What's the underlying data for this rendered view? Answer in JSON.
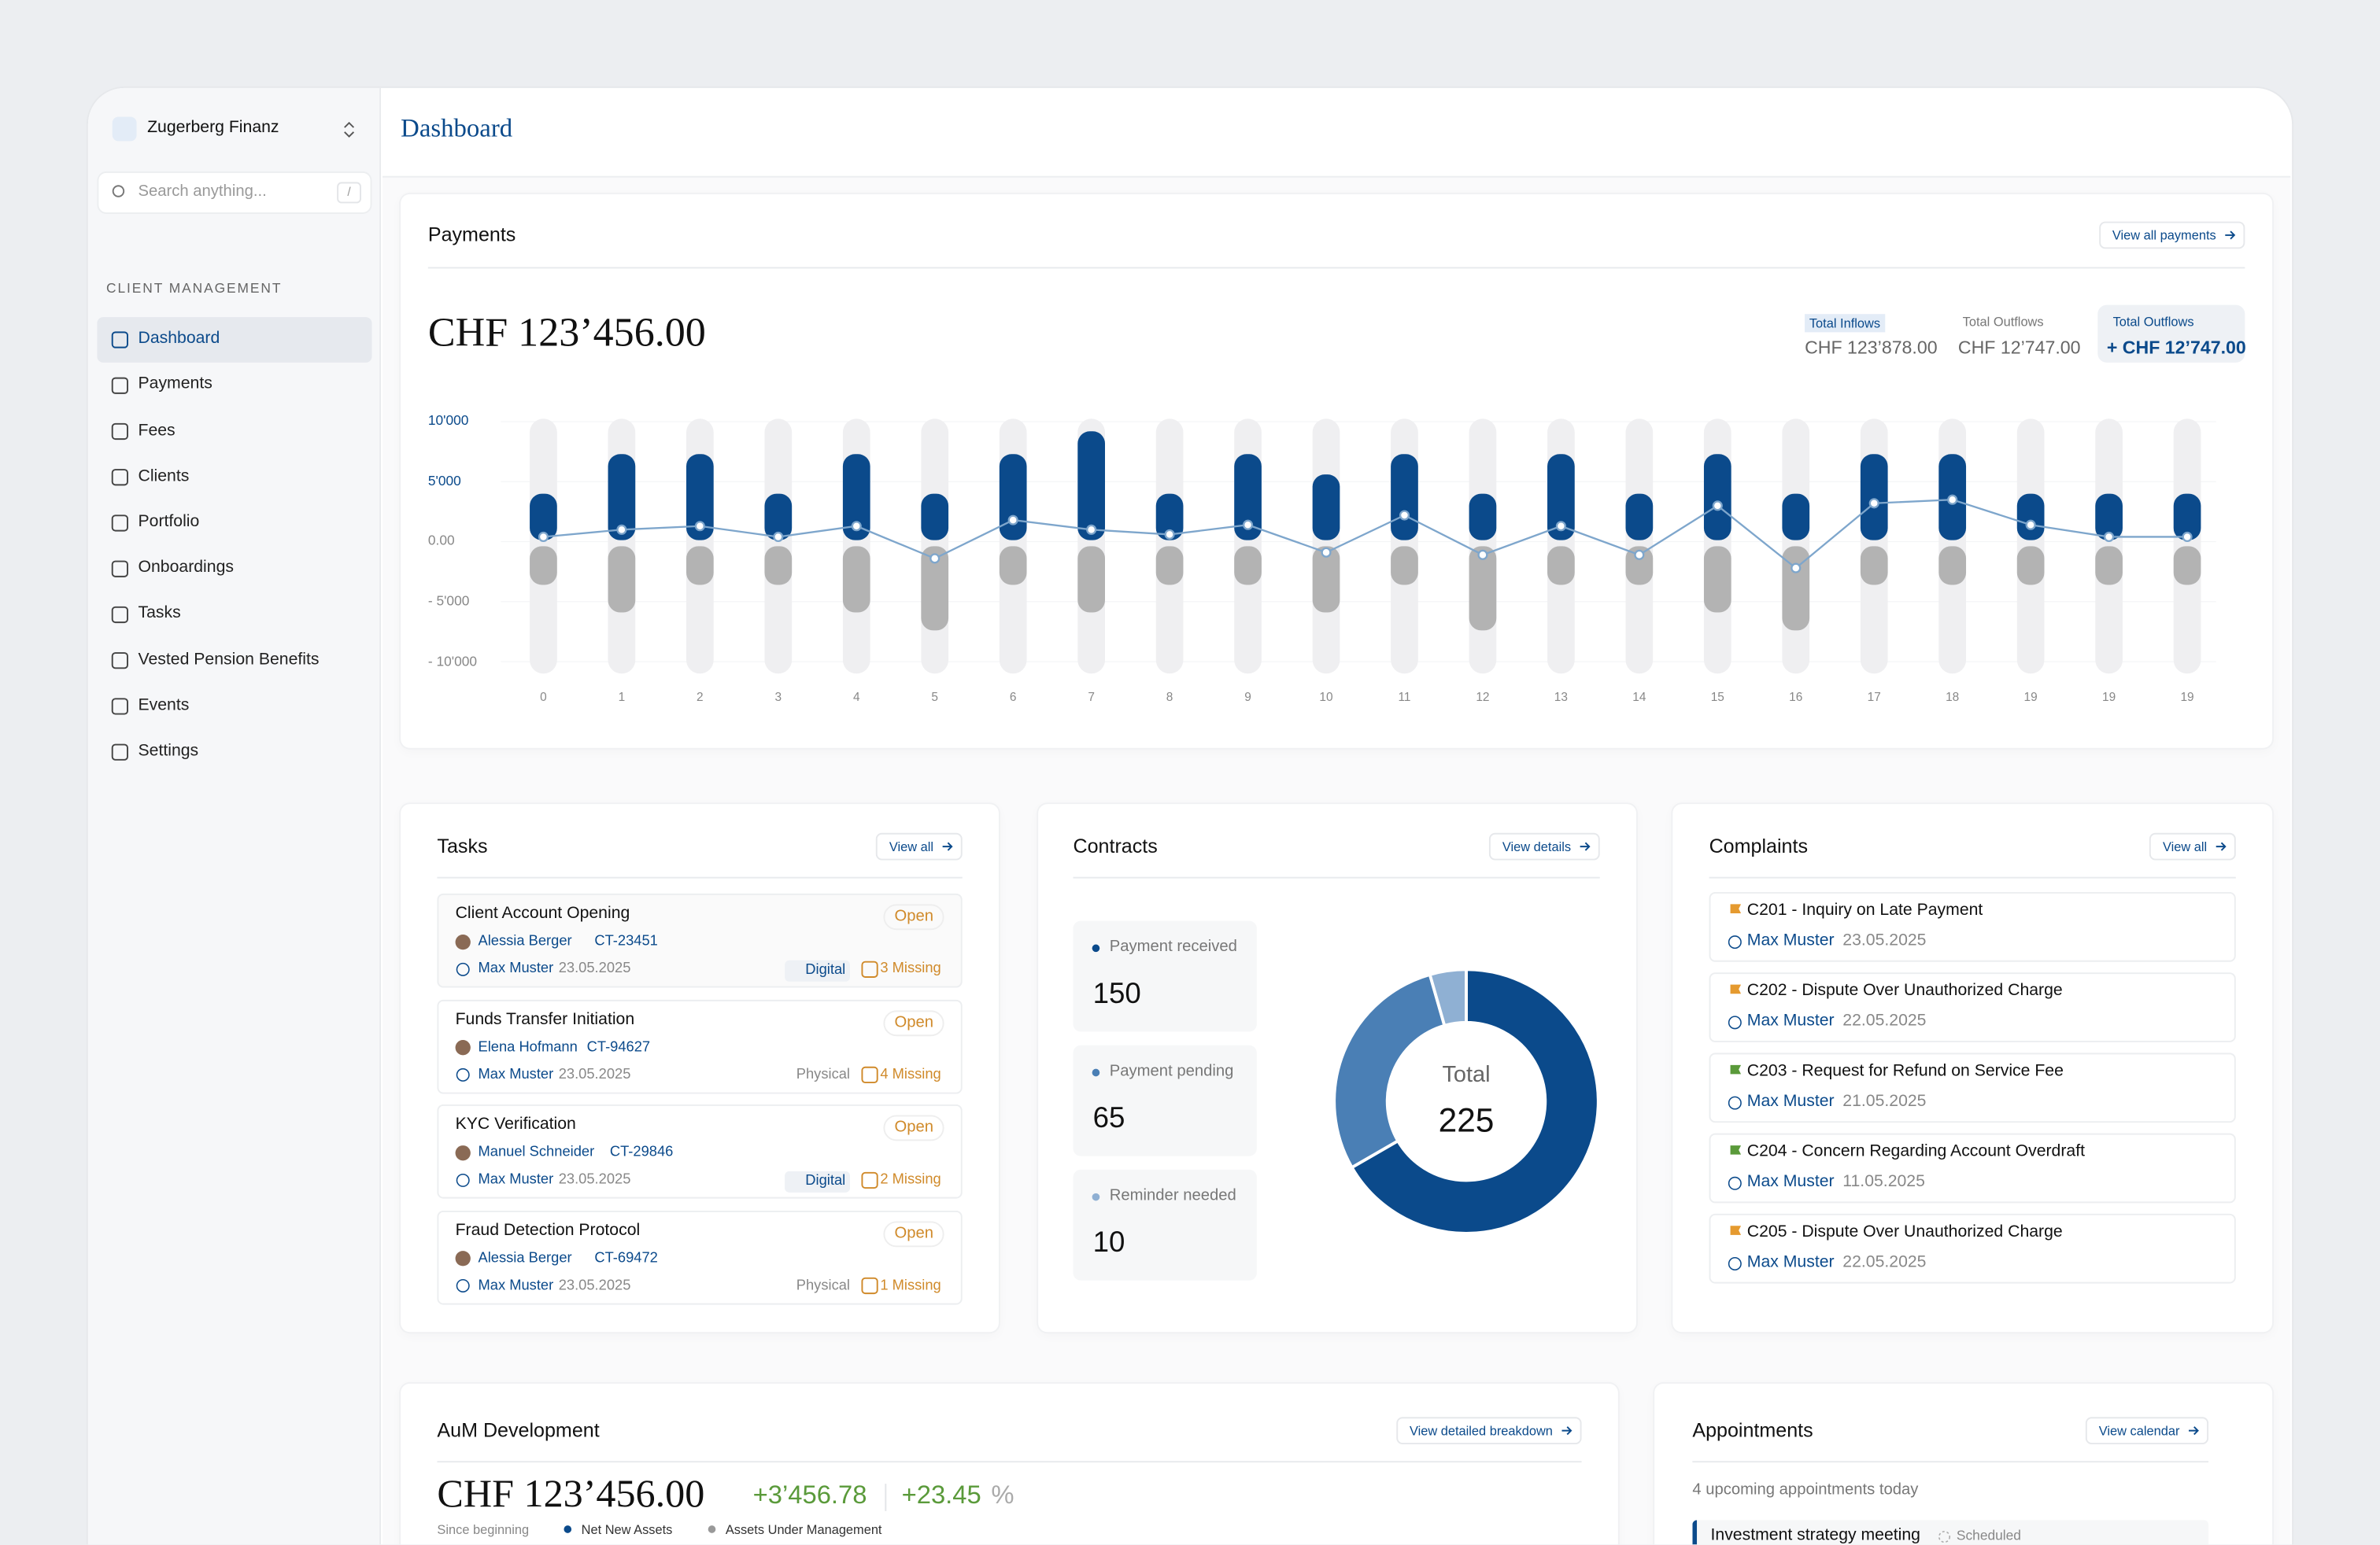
{
  "sidebar": {
    "org": "Zugerberg Finanz",
    "search": "Search anything...",
    "shortcut": "/",
    "section": "CLIENT MANAGEMENT",
    "nav": [
      "Dashboard",
      "Payments",
      "Fees",
      "Clients",
      "Portfolio",
      "Onboardings",
      "Tasks",
      "Vested Pension Benefits",
      "Events",
      "Settings"
    ],
    "active": 0
  },
  "header": {
    "title": "Dashboard"
  },
  "payments": {
    "title": "Payments",
    "link": "View all payments",
    "total": "CHF 123’456.00",
    "stats": [
      {
        "label": "Total Inflows",
        "value": "CHF 123’878.00"
      },
      {
        "label": "Total Outflows",
        "value": "CHF 12’747.00"
      },
      {
        "label": "Total Outflows",
        "value": "+ CHF 12’747.00"
      }
    ],
    "chart": {
      "type": "bar",
      "categories": [
        "0",
        "1",
        "2",
        "3",
        "4",
        "5",
        "6",
        "7",
        "8",
        "9",
        "10",
        "11",
        "12",
        "13",
        "14",
        "15",
        "16",
        "17",
        "18",
        "19",
        "19",
        "19"
      ],
      "series": [
        {
          "color": "#0b4a8b",
          "values": [
            4000,
            7300,
            7300,
            4000,
            7300,
            4000,
            7300,
            9200,
            4000,
            7300,
            5600,
            7300,
            4000,
            7300,
            4000,
            7300,
            4000,
            7300,
            7300,
            4000,
            4000,
            4000
          ]
        },
        {
          "color": "#b3b3b3",
          "values": [
            -3600,
            -5900,
            -3600,
            -3600,
            -5900,
            -7400,
            -3600,
            -5900,
            -3600,
            -3600,
            -5900,
            -3600,
            -7400,
            -3600,
            -3600,
            -5900,
            -7400,
            -3600,
            -3600,
            -3600,
            -3600,
            -3600
          ]
        },
        {
          "type": "line",
          "color": "#7ea6cc",
          "values": [
            400,
            1000,
            1300,
            400,
            1300,
            -1400,
            1800,
            1000,
            600,
            1400,
            -900,
            2200,
            -1100,
            1300,
            -1100,
            3000,
            -2200,
            3200,
            3500,
            1400,
            400,
            400
          ]
        }
      ],
      "ylim": [
        -11000,
        10250
      ],
      "yticks": [
        {
          "value": 10000,
          "label": "10'000"
        },
        {
          "value": 5000,
          "label": "5'000"
        },
        {
          "value": 0,
          "label": "0.00"
        },
        {
          "value": -5000,
          "label": "- 5'000"
        },
        {
          "value": -10000,
          "label": "- 10'000"
        }
      ]
    }
  },
  "tasks": {
    "title": "Tasks",
    "link": "View all",
    "items": [
      {
        "title": "Client Account Opening",
        "status": "Open",
        "client": "Alessia Berger",
        "client_id": "CT-23451",
        "assignee": "Max Muster",
        "date": "23.05.2025",
        "channel": "Digital",
        "missing": "3 Missing"
      },
      {
        "title": "Funds Transfer Initiation",
        "status": "Open",
        "client": "Elena Hofmann",
        "client_id": "CT-94627",
        "assignee": "Max Muster",
        "date": "23.05.2025",
        "channel": "Physical",
        "missing": "4 Missing"
      },
      {
        "title": "KYC Verification",
        "status": "Open",
        "client": "Manuel Schneider",
        "client_id": "CT-29846",
        "assignee": "Max Muster",
        "date": "23.05.2025",
        "channel": "Digital",
        "missing": "2 Missing"
      },
      {
        "title": "Fraud Detection Protocol",
        "status": "Open",
        "client": "Alessia Berger",
        "client_id": "CT-69472",
        "assignee": "Max Muster",
        "date": "23.05.2025",
        "channel": "Physical",
        "missing": "1 Missing"
      }
    ]
  },
  "contracts": {
    "title": "Contracts",
    "link": "View details",
    "items": [
      {
        "label": "Payment received",
        "value": 150,
        "color": "#0b4a8b"
      },
      {
        "label": "Payment pending",
        "value": 65,
        "color": "#4a7fb5"
      },
      {
        "label": "Reminder needed",
        "value": 10,
        "color": "#8fb0d3"
      }
    ],
    "total_label": "Total",
    "total": 225
  },
  "complaints": {
    "title": "Complaints",
    "link": "View all",
    "items": [
      {
        "title": "C201 - Inquiry on Late Payment",
        "flag": "#e59a2f",
        "assignee": "Max Muster",
        "date": "23.05.2025"
      },
      {
        "title": "C202 - Dispute Over Unauthorized Charge",
        "flag": "#e59a2f",
        "assignee": "Max Muster",
        "date": "22.05.2025"
      },
      {
        "title": "C203 - Request for Refund on Service Fee",
        "flag": "#5a9a3a",
        "assignee": "Max Muster",
        "date": "21.05.2025"
      },
      {
        "title": "C204 - Concern Regarding Account Overdraft",
        "flag": "#5a9a3a",
        "assignee": "Max Muster",
        "date": "11.05.2025"
      },
      {
        "title": "C205 - Dispute Over Unauthorized Charge",
        "flag": "#e59a2f",
        "assignee": "Max Muster",
        "date": "22.05.2025"
      }
    ]
  },
  "aum": {
    "title": "AuM Development",
    "link": "View detailed breakdown",
    "value": "CHF 123’456.00",
    "change": "+3’456.78",
    "pct": "+23.45",
    "pct_unit": "%",
    "since": "Since beginning",
    "legend": [
      {
        "name": "Net New Assets",
        "color": "#0b4a8b"
      },
      {
        "name": "Assets Under Management",
        "color": "#999999"
      }
    ]
  },
  "appointments": {
    "title": "Appointments",
    "link": "View calendar",
    "subtitle": "4 upcoming appointments today",
    "items": [
      {
        "title": "Investment strategy meeting",
        "status": "Scheduled"
      }
    ]
  }
}
